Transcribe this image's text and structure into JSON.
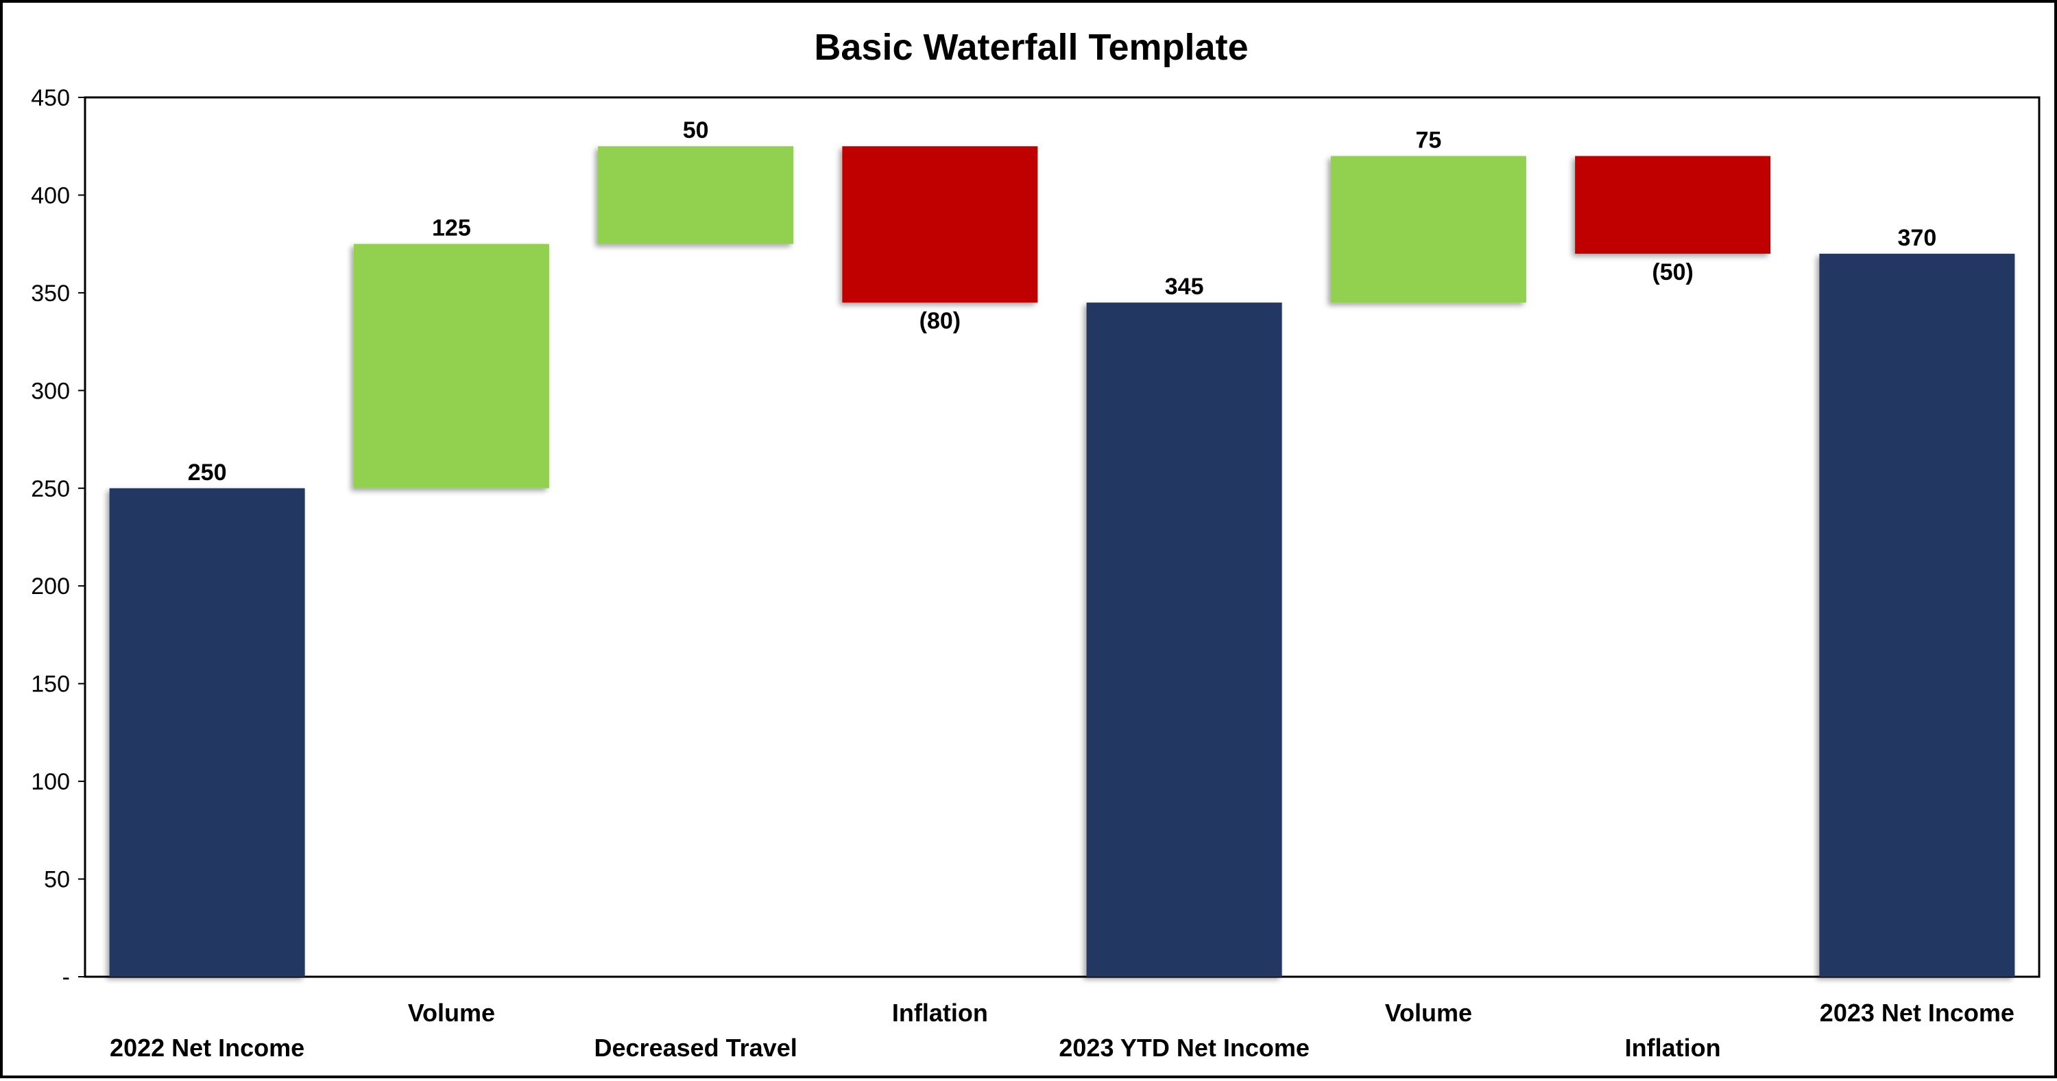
{
  "chart_data": {
    "type": "bar",
    "subtype": "waterfall",
    "title": "Basic Waterfall Template",
    "xlabel": "",
    "ylabel": "",
    "ylim": [
      0,
      450
    ],
    "yticks": [
      0,
      50,
      100,
      150,
      200,
      250,
      300,
      350,
      400,
      450
    ],
    "ytick_labels": [
      "-",
      "50",
      "100",
      "150",
      "200",
      "250",
      "300",
      "350",
      "400",
      "450"
    ],
    "grid": false,
    "legend": "none",
    "categories": [
      "2022 Net Income",
      "Volume",
      "Decreased Travel",
      "Inflation",
      "2023 YTD Net Income",
      "Volume",
      "Inflation",
      "2023 Net Income"
    ],
    "values": [
      250,
      125,
      50,
      -80,
      345,
      75,
      -50,
      370
    ],
    "bar_kinds": [
      "total",
      "increase",
      "increase",
      "decrease",
      "total",
      "increase",
      "decrease",
      "total"
    ],
    "data_labels": [
      "250",
      "125",
      "50",
      "(80)",
      "345",
      "75",
      "(50)",
      "370"
    ],
    "colors": {
      "total": "#203864",
      "increase": "#92D050",
      "decrease": "#C00000"
    }
  }
}
